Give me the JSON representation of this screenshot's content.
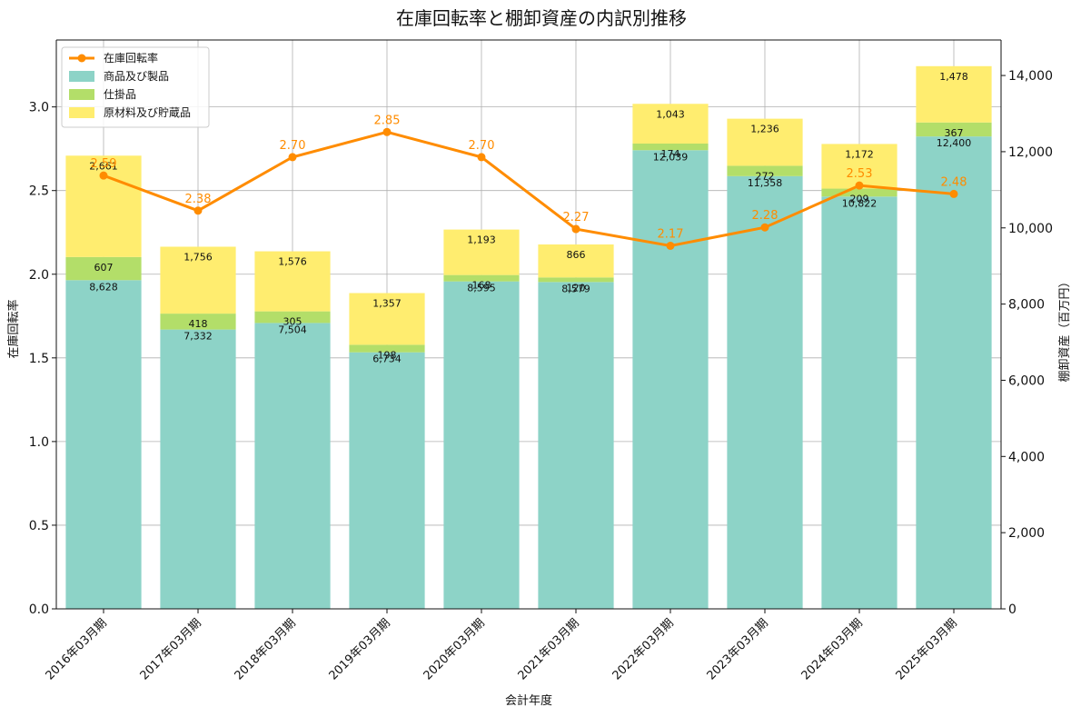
{
  "chart_data": {
    "type": "bar",
    "title": "在庫回転率と棚卸資産の内訳別推移",
    "xlabel": "会計年度",
    "ylabel_left": "在庫回転率",
    "ylabel_right": "棚卸資産（百万円）",
    "categories": [
      "2016年03月期",
      "2017年03月期",
      "2018年03月期",
      "2019年03月期",
      "2020年03月期",
      "2021年03月期",
      "2022年03月期",
      "2023年03月期",
      "2024年03月期",
      "2025年03月期"
    ],
    "ylim_left": [
      0,
      3.4
    ],
    "ylim_right": [
      0,
      14932
    ],
    "yticks_left": [
      "0.0",
      "0.5",
      "1.0",
      "1.5",
      "2.0",
      "2.5",
      "3.0"
    ],
    "yticks_left_values": [
      0,
      0.5,
      1.0,
      1.5,
      2.0,
      2.5,
      3.0
    ],
    "yticks_right": [
      "0",
      "2,000",
      "4,000",
      "6,000",
      "8,000",
      "10,000",
      "12,000",
      "14,000"
    ],
    "yticks_right_values": [
      0,
      2000,
      4000,
      6000,
      8000,
      10000,
      12000,
      14000
    ],
    "grid": true,
    "legend_position": "top-left",
    "series": [
      {
        "name": "商品及び製品",
        "kind": "bar",
        "axis": "right",
        "color": "#8dd3c7",
        "values": [
          8628,
          7332,
          7504,
          6734,
          8595,
          8579,
          12039,
          11358,
          10822,
          12400
        ],
        "labels": [
          "8,628",
          "7,332",
          "7,504",
          "6,734",
          "8,595",
          "8,579",
          "12,039",
          "11,358",
          "10,822",
          "12,400"
        ]
      },
      {
        "name": "仕掛品",
        "kind": "bar",
        "axis": "right",
        "color": "#b3de69",
        "values": [
          607,
          418,
          305,
          198,
          168,
          120,
          174,
          272,
          209,
          367
        ],
        "labels": [
          "607",
          "418",
          "305",
          "198",
          "168",
          "120",
          "174",
          "272",
          "209",
          "367"
        ]
      },
      {
        "name": "原材料及び貯蔵品",
        "kind": "bar",
        "axis": "right",
        "color": "#ffed6f",
        "values": [
          2661,
          1756,
          1576,
          1357,
          1193,
          866,
          1043,
          1236,
          1172,
          1478
        ],
        "labels": [
          "2,661",
          "1,756",
          "1,576",
          "1,357",
          "1,193",
          "866",
          "1,043",
          "1,236",
          "1,172",
          "1,478"
        ]
      },
      {
        "name": "在庫回転率",
        "kind": "line",
        "axis": "left",
        "color": "#ff8c00",
        "values": [
          2.59,
          2.38,
          2.7,
          2.85,
          2.7,
          2.27,
          2.17,
          2.28,
          2.53,
          2.48
        ],
        "labels": [
          "2.59",
          "2.38",
          "2.70",
          "2.85",
          "2.70",
          "2.27",
          "2.17",
          "2.28",
          "2.53",
          "2.48"
        ]
      }
    ]
  }
}
